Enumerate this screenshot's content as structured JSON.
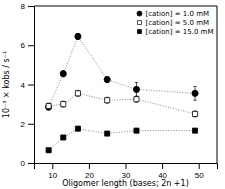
{
  "chart_data": {
    "type": "line",
    "x_label": "Oligomer length (bases; 2n +1)",
    "y_label": "10⁻³ × kobs / s⁻¹",
    "x": [
      9,
      13,
      17,
      25,
      33,
      49
    ],
    "series": [
      {
        "name": "[cation] = 1.0 mM",
        "color": "black",
        "marker": "circle",
        "line_style": "dotted",
        "values": [
          2.85,
          4.55,
          6.45,
          4.25,
          3.75,
          3.55
        ],
        "yerr": [
          0.15,
          0.15,
          0.15,
          0.15,
          0.35,
          0.35
        ]
      },
      {
        "name": "[cation] = 5.0 mM",
        "color": "white",
        "marker": "square",
        "line_style": "dotted",
        "values": [
          2.9,
          3.0,
          3.55,
          3.2,
          3.25,
          2.5
        ],
        "yerr": [
          0.15,
          0.15,
          0.15,
          0.15,
          0.15,
          0.15
        ]
      },
      {
        "name": "[cation] = 15.0 mM",
        "color": "black",
        "marker": "square",
        "line_style": "dotted",
        "values": [
          0.65,
          1.3,
          1.75,
          1.5,
          1.65,
          1.65
        ],
        "yerr": [
          0.1,
          0.1,
          0.1,
          0.1,
          0.1,
          0.1
        ]
      }
    ],
    "xlim": [
      5,
      55
    ],
    "ylim": [
      0,
      8
    ],
    "xticks": [
      10,
      20,
      30,
      40,
      50
    ],
    "yticks": [
      0,
      2,
      4,
      6,
      8
    ],
    "legend": "upper right"
  }
}
